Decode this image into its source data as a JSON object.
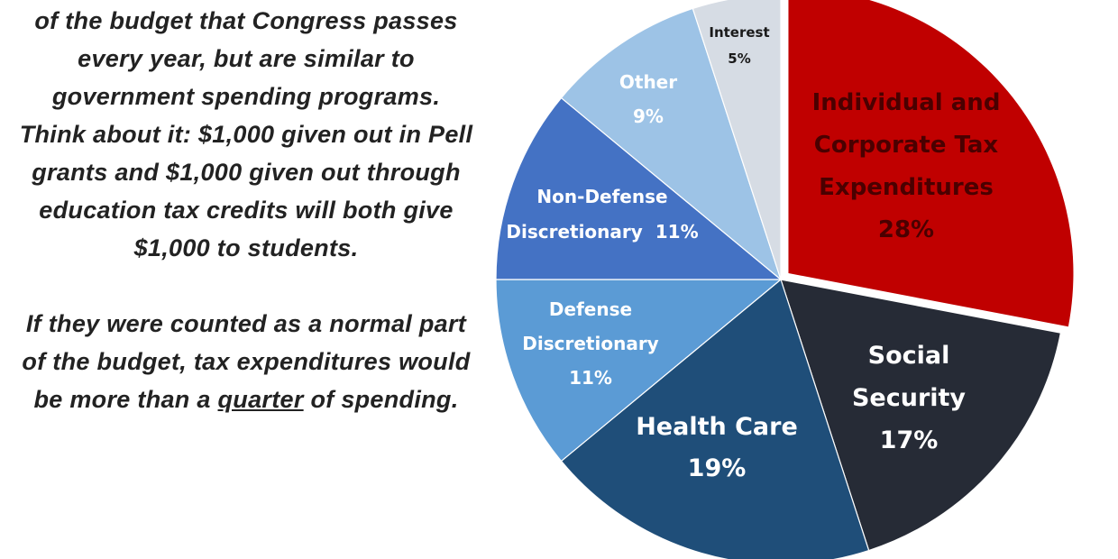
{
  "text_panel": {
    "paragraph1": "of the budget that Congress passes every year, but are similar to government spending programs. Think about it: $1,000 given out in Pell grants and $1,000 given out through education tax credits will both give $1,000 to students.",
    "paragraph2_before": "If they were counted as a normal part of the budget, tax expenditures would be more than a ",
    "paragraph2_underlined": "quarter",
    "paragraph2_after": " of spending."
  },
  "chart_data": {
    "type": "pie",
    "title": "",
    "slices": [
      {
        "label": [
          "Individual and",
          "Corporate Tax",
          "Expenditures",
          "28%"
        ],
        "name": "Individual and Corporate Tax Expenditures",
        "value": 28,
        "color": "#c00000",
        "text_color": "#4a0000",
        "exploded": true
      },
      {
        "label": [
          "Social",
          "Security",
          "17%"
        ],
        "name": "Social Security",
        "value": 17,
        "color": "#262b36",
        "text_color": "#ffffff",
        "exploded": false
      },
      {
        "label": [
          "Health Care",
          "19%"
        ],
        "name": "Health Care",
        "value": 19,
        "color": "#1f4e79",
        "text_color": "#ffffff",
        "exploded": false
      },
      {
        "label": [
          "Defense",
          "Discretionary",
          "11%"
        ],
        "name": "Defense Discretionary",
        "value": 11,
        "color": "#5b9bd5",
        "text_color": "#ffffff",
        "exploded": false
      },
      {
        "label": [
          "Non-Defense",
          "Discretionary  11%"
        ],
        "name": "Non-Defense Discretionary",
        "value": 11,
        "color": "#4472c4",
        "text_color": "#ffffff",
        "exploded": false
      },
      {
        "label": [
          "Other",
          "9%"
        ],
        "name": "Other",
        "value": 9,
        "color": "#9dc3e6",
        "text_color": "#ffffff",
        "exploded": false
      },
      {
        "label": [
          "Interest",
          "5%"
        ],
        "name": "Interest",
        "value": 5,
        "color": "#d6dce4",
        "text_color": "#1a1a1a",
        "exploded": false
      }
    ]
  }
}
